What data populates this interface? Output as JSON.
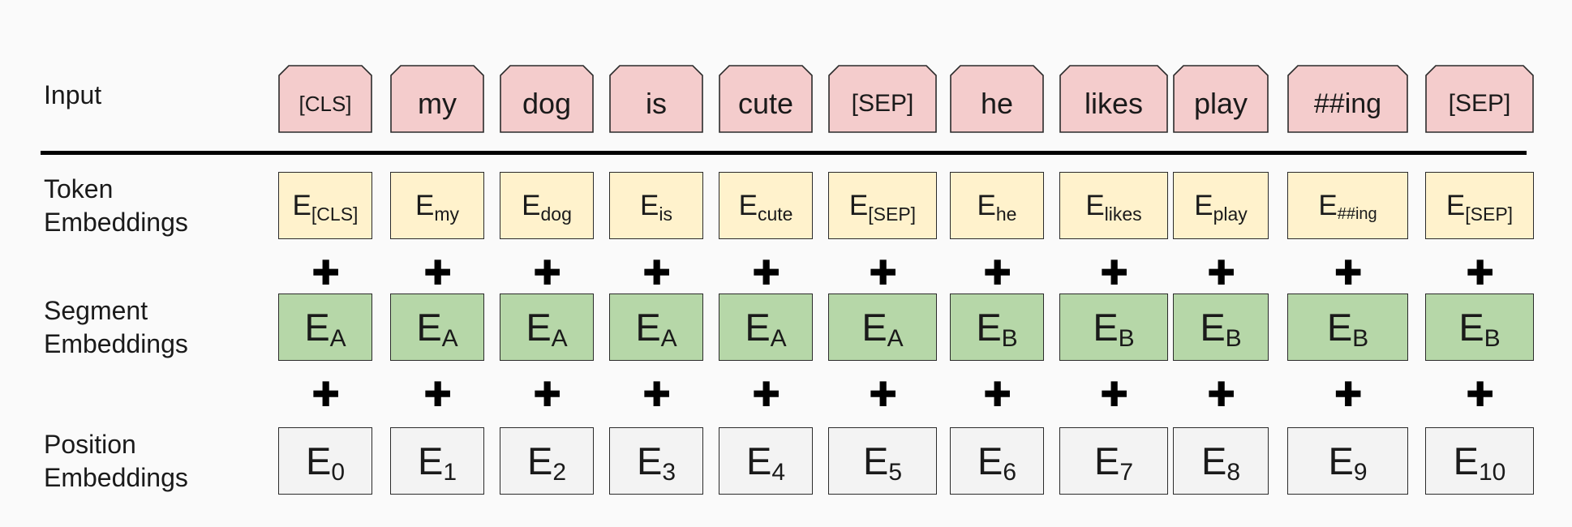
{
  "labels": {
    "input": "Input",
    "token": "Token\nEmbeddings",
    "segment": "Segment\nEmbeddings",
    "position": "Position\nEmbeddings"
  },
  "plus_symbol": "✚",
  "colors": {
    "input": "#f4cccc",
    "token": "#fff2cc",
    "segment": "#b6d7a8",
    "position": "#f3f3f3",
    "border": "#2b2b2b"
  },
  "tokens": [
    {
      "input": "[CLS]",
      "token_sub": "[CLS]",
      "segment_sub": "A",
      "position_sub": "0"
    },
    {
      "input": "my",
      "token_sub": "my",
      "segment_sub": "A",
      "position_sub": "1"
    },
    {
      "input": "dog",
      "token_sub": "dog",
      "segment_sub": "A",
      "position_sub": "2"
    },
    {
      "input": "is",
      "token_sub": "is",
      "segment_sub": "A",
      "position_sub": "3"
    },
    {
      "input": "cute",
      "token_sub": "cute",
      "segment_sub": "A",
      "position_sub": "4"
    },
    {
      "input": "[SEP]",
      "token_sub": "[SEP]",
      "segment_sub": "A",
      "position_sub": "5"
    },
    {
      "input": "he",
      "token_sub": "he",
      "segment_sub": "B",
      "position_sub": "6"
    },
    {
      "input": "likes",
      "token_sub": "likes",
      "segment_sub": "B",
      "position_sub": "7"
    },
    {
      "input": "play",
      "token_sub": "play",
      "segment_sub": "B",
      "position_sub": "8"
    },
    {
      "input": "##ing",
      "token_sub": "##ing",
      "segment_sub": "B",
      "position_sub": "9"
    },
    {
      "input": "[SEP]",
      "token_sub": "[SEP]",
      "segment_sub": "B",
      "position_sub": "10"
    }
  ],
  "embedding_letter": "E"
}
